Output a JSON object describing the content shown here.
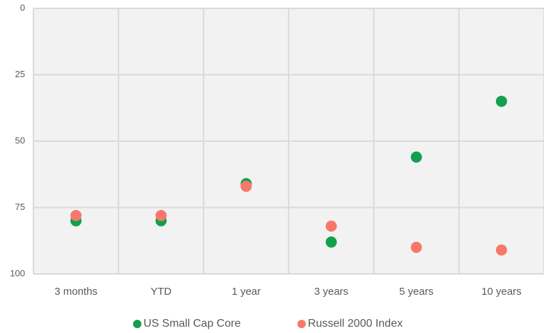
{
  "chart_data": {
    "type": "scatter",
    "categories": [
      "3 months",
      "YTD",
      "1 year",
      "3 years",
      "5 years",
      "10 years"
    ],
    "series": [
      {
        "name": "US Small Cap Core",
        "color": "#12a04f",
        "values": [
          80,
          80,
          66,
          88,
          56,
          35
        ]
      },
      {
        "name": "Russell 2000 Index",
        "color": "#f7786b",
        "values": [
          78,
          78,
          67,
          82,
          90,
          91
        ]
      }
    ],
    "ylim": [
      0,
      100
    ],
    "yticks": [
      0,
      25,
      50,
      75,
      100
    ],
    "y_inverted": true,
    "grid": true,
    "legend": "bottom"
  }
}
